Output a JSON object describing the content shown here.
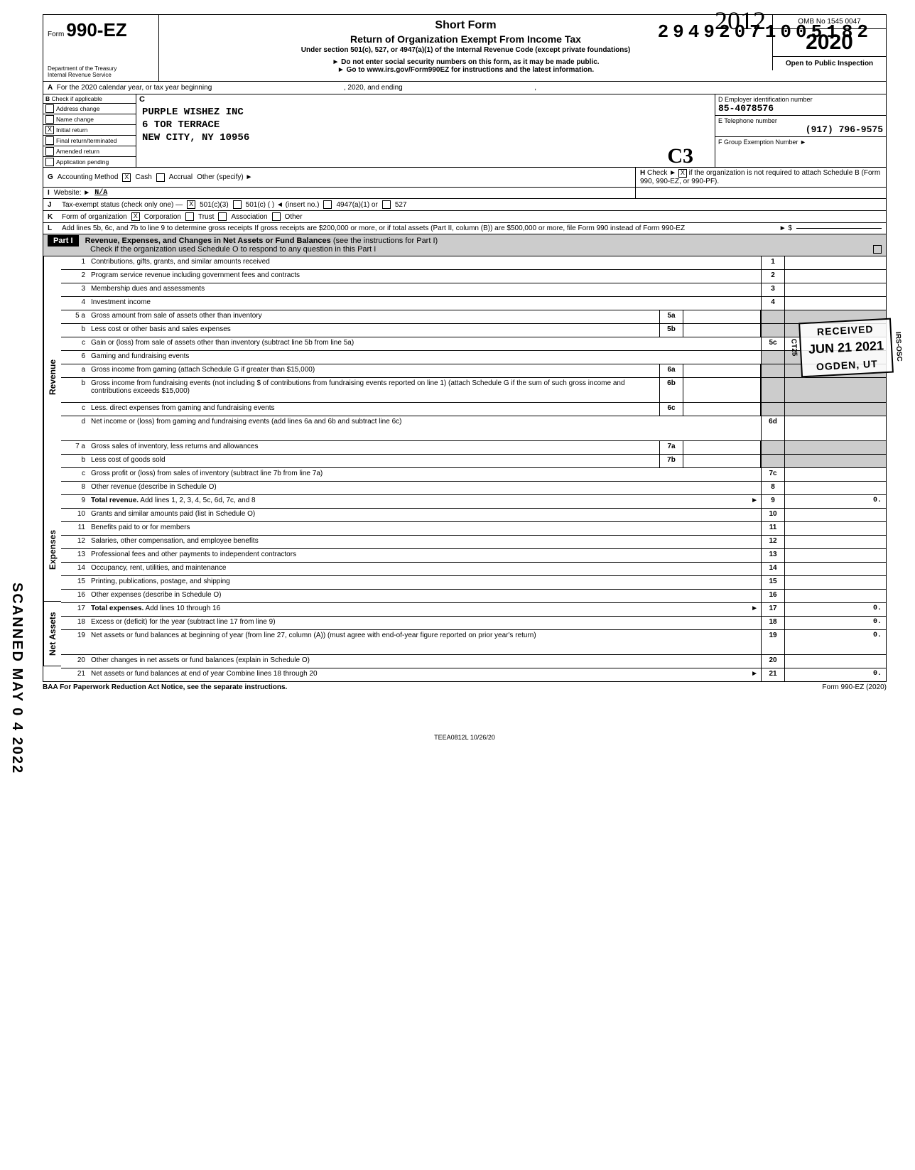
{
  "dln": "29492071005182",
  "handwritten_year": "2012",
  "form": {
    "prefix": "Form",
    "number": "990-EZ",
    "dept1": "Department of the Treasury",
    "dept2": "Internal Revenue Service"
  },
  "title": {
    "short": "Short Form",
    "main": "Return of Organization Exempt From Income Tax",
    "sub": "Under section 501(c), 527, or 4947(a)(1) of the Internal Revenue Code (except private foundations)",
    "warn": "Do not enter social security numbers on this form, as it may be made public.",
    "goto": "Go to www.irs.gov/Form990EZ for instructions and the latest information."
  },
  "right": {
    "omb": "OMB No 1545 0047",
    "year": "2020",
    "open": "Open to Public Inspection"
  },
  "lineA": {
    "label_a": "A",
    "text1": "For the 2020 calendar year, or tax year beginning",
    "text2": ", 2020, and ending",
    "text3": ","
  },
  "B": {
    "header_b": "B",
    "header_txt": "Check if applicable",
    "opts": [
      "Address change",
      "Name change",
      "Initial return",
      "Final return/terminated",
      "Amended return",
      "Application pending"
    ],
    "checked_index": 2
  },
  "C": {
    "label": "C",
    "name": "PURPLE WISHEZ INC",
    "addr1": "6 TOR TERRACE",
    "addr2": "NEW CITY, NY 10956"
  },
  "D": {
    "label": "D  Employer identification number",
    "value": "85-4078576"
  },
  "E": {
    "label": "E  Telephone number",
    "value": "(917) 796-9575"
  },
  "F": {
    "label": "F  Group Exemption Number ►",
    "value": ""
  },
  "handwritten_c3": "C3",
  "G": {
    "lbl": "G",
    "text": "Accounting Method",
    "cash": "Cash",
    "accrual": "Accrual",
    "other": "Other (specify) ►",
    "cash_checked": true
  },
  "H": {
    "lbl": "H",
    "text1": "Check ►",
    "text2": "if the organization is not required to attach Schedule B (Form 990, 990-EZ, or 990-PF).",
    "checked": true
  },
  "I": {
    "lbl": "I",
    "text": "Website: ►",
    "value": "N/A"
  },
  "J": {
    "lbl": "J",
    "text": "Tax-exempt status (check only one) —",
    "o1": "501(c)(3)",
    "o2": "501(c) (       ) ◄ (insert no.)",
    "o3": "4947(a)(1) or",
    "o4": "527",
    "checked": 0
  },
  "K": {
    "lbl": "K",
    "text": "Form of organization",
    "opts": [
      "Corporation",
      "Trust",
      "Association",
      "Other"
    ],
    "checked": 0
  },
  "L": {
    "lbl": "L",
    "text": "Add lines 5b, 6c, and 7b to line 9 to determine gross receipts  If gross receipts are $200,000 or more, or if total assets (Part II, column (B)) are $500,000 or more, file Form 990 instead of Form 990-EZ",
    "arrow": "► $"
  },
  "part1": {
    "label": "Part I",
    "title": "Revenue, Expenses, and Changes in Net Assets or Fund Balances",
    "hint": "(see the instructions for Part I)",
    "sub": "Check if the organization used Schedule O to respond to any question in this Part I"
  },
  "sides": {
    "revenue": "Revenue",
    "expenses": "Expenses",
    "netassets": "Net Assets"
  },
  "rows": {
    "r1": {
      "n": "1",
      "d": "Contributions, gifts, grants, and similar amounts received",
      "en": "1"
    },
    "r2": {
      "n": "2",
      "d": "Program service revenue including government fees and contracts",
      "en": "2"
    },
    "r3": {
      "n": "3",
      "d": "Membership dues and assessments",
      "en": "3"
    },
    "r4": {
      "n": "4",
      "d": "Investment income",
      "en": "4"
    },
    "r5a": {
      "n": "5 a",
      "d": "Gross amount from sale of assets other than inventory",
      "mn": "5a"
    },
    "r5b": {
      "n": "b",
      "d": "Less  cost or other basis and sales expenses",
      "mn": "5b"
    },
    "r5c": {
      "n": "c",
      "d": "Gain or (loss) from sale of assets other than inventory (subtract line 5b from line 5a)",
      "en": "5c"
    },
    "r6": {
      "n": "6",
      "d": "Gaming and fundraising events"
    },
    "r6a": {
      "n": "a",
      "d": "Gross income from gaming (attach Schedule G if greater than $15,000)",
      "mn": "6a"
    },
    "r6b": {
      "n": "b",
      "d": "Gross income from fundraising events (not including  $                    of contributions from fundraising events reported on line 1) (attach Schedule G if the sum of such gross income and contributions exceeds $15,000)",
      "mn": "6b"
    },
    "r6c": {
      "n": "c",
      "d": "Less. direct expenses from gaming and fundraising events",
      "mn": "6c"
    },
    "r6d": {
      "n": "d",
      "d": "Net income or (loss) from gaming and fundraising events (add lines 6a and 6b and subtract line 6c)",
      "en": "6d"
    },
    "r7a": {
      "n": "7 a",
      "d": "Gross sales of inventory, less returns and allowances",
      "mn": "7a"
    },
    "r7b": {
      "n": "b",
      "d": "Less  cost of goods sold",
      "mn": "7b"
    },
    "r7c": {
      "n": "c",
      "d": "Gross profit or (loss) from sales of inventory (subtract line 7b from line 7a)",
      "en": "7c"
    },
    "r8": {
      "n": "8",
      "d": "Other revenue (describe in Schedule O)",
      "en": "8"
    },
    "r9": {
      "n": "9",
      "d": "Total revenue. Add lines 1, 2, 3, 4, 5c, 6d, 7c, and 8",
      "en": "9",
      "ev": "0.",
      "bold": true,
      "arrow": true
    },
    "r10": {
      "n": "10",
      "d": "Grants and similar amounts paid (list in Schedule O)",
      "en": "10"
    },
    "r11": {
      "n": "11",
      "d": "Benefits paid to or for members",
      "en": "11"
    },
    "r12": {
      "n": "12",
      "d": "Salaries, other compensation, and employee benefits",
      "en": "12"
    },
    "r13": {
      "n": "13",
      "d": "Professional fees and other payments to independent contractors",
      "en": "13"
    },
    "r14": {
      "n": "14",
      "d": "Occupancy, rent, utilities, and maintenance",
      "en": "14"
    },
    "r15": {
      "n": "15",
      "d": "Printing, publications, postage, and shipping",
      "en": "15"
    },
    "r16": {
      "n": "16",
      "d": "Other expenses (describe in Schedule O)",
      "en": "16"
    },
    "r17": {
      "n": "17",
      "d": "Total expenses. Add lines 10 through 16",
      "en": "17",
      "ev": "0.",
      "bold": true,
      "arrow": true
    },
    "r18": {
      "n": "18",
      "d": "Excess or (deficit) for the year (subtract line 17 from line 9)",
      "en": "18",
      "ev": "0."
    },
    "r19": {
      "n": "19",
      "d": "Net assets or fund balances at beginning of year (from line 27, column (A)) (must agree with end-of-year figure reported on prior year's return)",
      "en": "19",
      "ev": "0."
    },
    "r20": {
      "n": "20",
      "d": "Other changes in net assets or fund balances (explain in Schedule O)",
      "en": "20"
    },
    "r21": {
      "n": "21",
      "d": "Net assets or fund balances at end of year  Combine lines 18 through 20",
      "en": "21",
      "ev": "0.",
      "arrow": true
    }
  },
  "stamps": {
    "received": {
      "l1": "RECEIVED",
      "l2": "JUN 21 2021",
      "l3": "OGDEN, UT",
      "side": "CT25",
      "side2": "IRS-OSC"
    },
    "scanned": "SCANNED MAY 0 4 2022"
  },
  "footer": {
    "baa": "BAA  For Paperwork Reduction Act Notice, see the separate instructions.",
    "formref": "Form 990-EZ (2020)",
    "code": "TEEA0812L   10/26/20"
  }
}
